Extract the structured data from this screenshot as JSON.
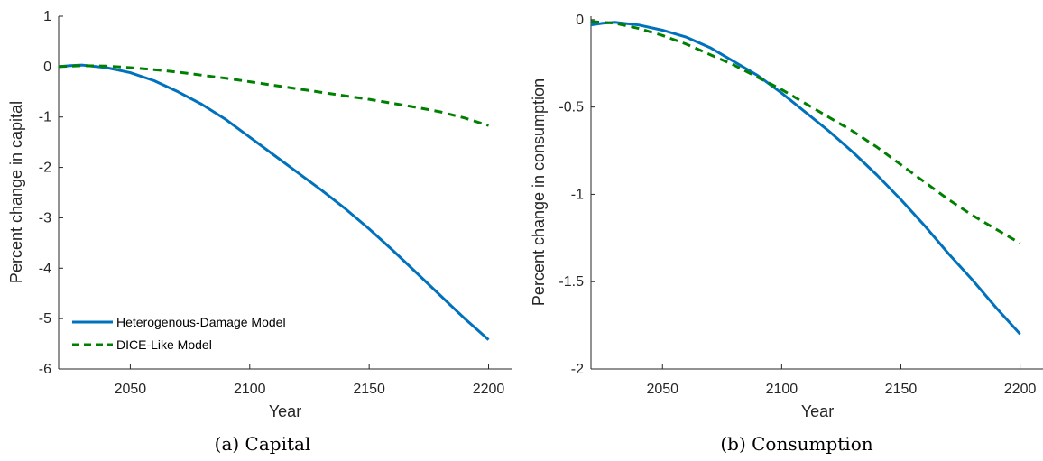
{
  "chart_data": [
    {
      "type": "line",
      "caption": "(a) Capital",
      "xlabel": "Year",
      "ylabel": "Percent change in capital",
      "xlim": [
        2020,
        2210
      ],
      "ylim": [
        -6,
        1
      ],
      "xticks": [
        2050,
        2100,
        2150,
        2200
      ],
      "yticks": [
        1,
        0,
        -1,
        -2,
        -3,
        -4,
        -5,
        -6
      ],
      "legend_position": "bottom-left",
      "series": [
        {
          "name": "Heterogenous-Damage Model",
          "color": "#0072BD",
          "style": "solid",
          "x": [
            2020,
            2025,
            2030,
            2040,
            2050,
            2060,
            2070,
            2080,
            2090,
            2100,
            2110,
            2120,
            2130,
            2140,
            2150,
            2160,
            2170,
            2180,
            2190,
            2200
          ],
          "y": [
            0.0,
            0.02,
            0.03,
            -0.02,
            -0.12,
            -0.28,
            -0.5,
            -0.75,
            -1.05,
            -1.4,
            -1.75,
            -2.1,
            -2.45,
            -2.82,
            -3.22,
            -3.65,
            -4.1,
            -4.55,
            -5.0,
            -5.42
          ]
        },
        {
          "name": "DICE-Like Model",
          "color": "#008000",
          "style": "dashed",
          "x": [
            2020,
            2030,
            2040,
            2050,
            2060,
            2070,
            2080,
            2090,
            2100,
            2110,
            2120,
            2130,
            2140,
            2150,
            2160,
            2170,
            2180,
            2190,
            2200
          ],
          "y": [
            0.0,
            0.02,
            0.01,
            -0.02,
            -0.06,
            -0.11,
            -0.17,
            -0.23,
            -0.3,
            -0.37,
            -0.44,
            -0.51,
            -0.58,
            -0.65,
            -0.73,
            -0.81,
            -0.9,
            -1.02,
            -1.17
          ]
        }
      ]
    },
    {
      "type": "line",
      "caption": "(b) Consumption",
      "xlabel": "Year",
      "ylabel": "Percent change in consumption",
      "xlim": [
        2020,
        2210
      ],
      "ylim": [
        -2,
        0.02
      ],
      "xticks": [
        2050,
        2100,
        2150,
        2200
      ],
      "yticks": [
        0,
        -0.5,
        -1,
        -1.5,
        -2
      ],
      "ytick_labels": [
        "0",
        "-0.5",
        "-1",
        "-1.5",
        "-2"
      ],
      "series": [
        {
          "name": "Heterogenous-Damage Model",
          "color": "#0072BD",
          "style": "solid",
          "x": [
            2020,
            2025,
            2030,
            2040,
            2050,
            2060,
            2070,
            2080,
            2090,
            2100,
            2110,
            2120,
            2130,
            2140,
            2150,
            2160,
            2170,
            2180,
            2190,
            2200
          ],
          "y": [
            -0.03,
            -0.02,
            -0.015,
            -0.03,
            -0.06,
            -0.1,
            -0.16,
            -0.24,
            -0.32,
            -0.42,
            -0.53,
            -0.64,
            -0.76,
            -0.89,
            -1.03,
            -1.18,
            -1.34,
            -1.49,
            -1.65,
            -1.8
          ]
        },
        {
          "name": "DICE-Like Model",
          "color": "#008000",
          "style": "dashed",
          "x": [
            2020,
            2030,
            2040,
            2050,
            2060,
            2070,
            2080,
            2090,
            2100,
            2110,
            2120,
            2130,
            2140,
            2150,
            2160,
            2170,
            2180,
            2190,
            2200
          ],
          "y": [
            -0.01,
            -0.02,
            -0.05,
            -0.09,
            -0.14,
            -0.2,
            -0.26,
            -0.33,
            -0.4,
            -0.48,
            -0.56,
            -0.64,
            -0.73,
            -0.83,
            -0.93,
            -1.03,
            -1.12,
            -1.2,
            -1.28
          ]
        }
      ]
    }
  ]
}
